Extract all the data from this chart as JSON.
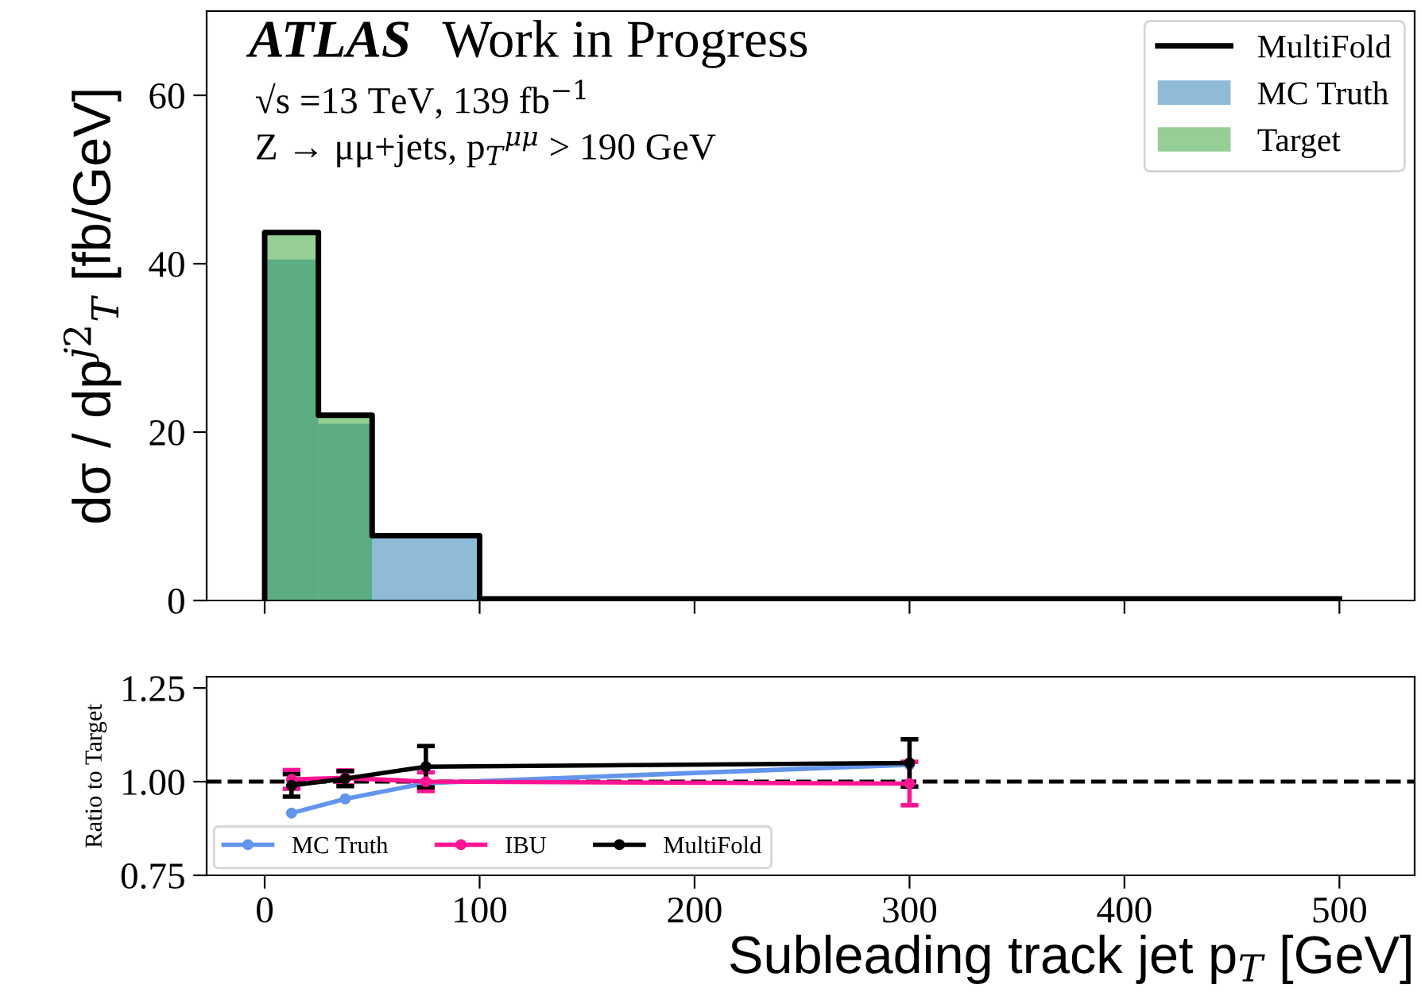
{
  "chart_data": [
    {
      "type": "histogram",
      "title": "ATLAS",
      "subtitle": "Work in Progress",
      "ylabel": "dσ / dp$^{j2}$$_{T}$ [fb/GeV]",
      "annotations": [
        "√s =13 TeV, 139 fb$^{−1}$",
        "Z → μμ+jets, p$_{T}$$^{μμ}$ > 190 GeV"
      ],
      "bins": [
        0,
        25,
        50,
        100,
        500
      ],
      "series": [
        {
          "name": "MultiFold",
          "type": "step",
          "color": "#000000",
          "x": [
            0,
            0,
            25,
            50,
            100,
            500
          ],
          "values": [
            0,
            43.7,
            22.0,
            7.7,
            0.2,
            0.2
          ]
        },
        {
          "name": "MC Truth",
          "type": "histogram",
          "color": "#1f77b4",
          "values": [
            40.5,
            21.0,
            7.7,
            0.2
          ]
        },
        {
          "name": "Target",
          "type": "histogram",
          "color": "#2ca02c",
          "values": [
            43.7,
            21.9,
            null,
            null
          ]
        }
      ],
      "xlim": [
        -27,
        535
      ],
      "xticks": [
        0,
        100,
        200,
        300,
        400,
        500
      ],
      "ylim": [
        0,
        70
      ],
      "yticks": [
        0,
        20,
        40,
        60
      ],
      "tick_labels": "y",
      "legend": "top right",
      "grid": false
    },
    {
      "type": "line",
      "xlabel": "Subleading track jet p$_{T}$ [GeV]",
      "ylabel": "Ratio to Target",
      "series": [
        {
          "name": "MC Truth",
          "color": "#6495ed",
          "x": [
            12.5,
            37.5,
            75,
            300
          ],
          "values": [
            0.916,
            0.954,
            0.996,
            1.045
          ]
        },
        {
          "name": "IBU",
          "color": "#ff1493",
          "x": [
            12.5,
            37.5,
            75,
            300
          ],
          "values": [
            1.006,
            1.01,
            1.0,
            0.995
          ],
          "errors": [
            0.025,
            0.02,
            0.025,
            0.058
          ]
        },
        {
          "name": "MultiFold",
          "color": "#000000",
          "x": [
            12.5,
            37.5,
            75,
            300
          ],
          "values": [
            0.99,
            1.008,
            1.04,
            1.05
          ],
          "errors": [
            0.03,
            0.02,
            0.055,
            0.063
          ]
        }
      ],
      "ref_lines": [
        {
          "axis": "y",
          "value": 1.0,
          "color": "#000000",
          "line_style": "dashed"
        }
      ],
      "xlim": [
        -27,
        535
      ],
      "xticks": [
        0,
        100,
        200,
        300,
        400,
        500
      ],
      "ylim": [
        0.75,
        1.28
      ],
      "yticks": [
        {
          "value": 0.75,
          "label": "0.75"
        },
        {
          "value": 1.0,
          "label": "1.00"
        },
        {
          "value": 1.25,
          "label": "1.25"
        }
      ],
      "marker": "circle",
      "legend": "bottom left",
      "grid": false
    }
  ]
}
